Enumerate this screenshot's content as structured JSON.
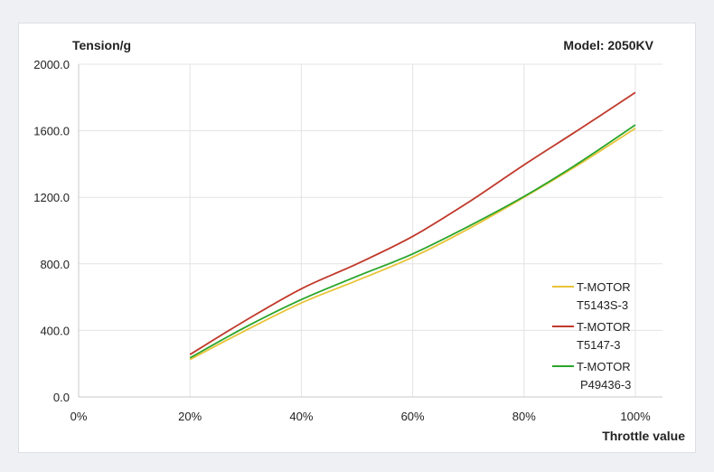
{
  "chart_data": {
    "type": "line",
    "title": "Model: 2050KV",
    "ylabel": "Tension/g",
    "xlabel": "Throttle value",
    "xlim": [
      0,
      100
    ],
    "ylim": [
      0,
      2000
    ],
    "x_tick_labels": [
      "0%",
      "20%",
      "40%",
      "60%",
      "80%",
      "100%"
    ],
    "x_tick_values": [
      0,
      20,
      40,
      60,
      80,
      100
    ],
    "y_tick_labels": [
      "0.0",
      "400.0",
      "800.0",
      "1200.0",
      "1600.0",
      "2000.0"
    ],
    "y_tick_values": [
      0,
      400,
      800,
      1200,
      1600,
      2000
    ],
    "grid": true,
    "legend_position": "lower-right",
    "x": [
      20,
      30,
      40,
      50,
      60,
      70,
      80,
      90,
      100
    ],
    "series": [
      {
        "name_line1": "T-MOTOR",
        "name_line2": "T5143S-3",
        "color": "#e8c43a",
        "values": [
          225,
          400,
          565,
          700,
          840,
          1010,
          1200,
          1400,
          1615
        ]
      },
      {
        "name_line1": "T-MOTOR",
        "name_line2": "T5147-3",
        "color": "#c0392b",
        "values": [
          255,
          460,
          650,
          800,
          965,
          1170,
          1395,
          1610,
          1830
        ]
      },
      {
        "name_line1": "T-MOTOR",
        "name_line2": "P49436-3",
        "color": "#2aa52a",
        "values": [
          235,
          420,
          585,
          725,
          860,
          1025,
          1205,
          1410,
          1635
        ]
      }
    ]
  }
}
